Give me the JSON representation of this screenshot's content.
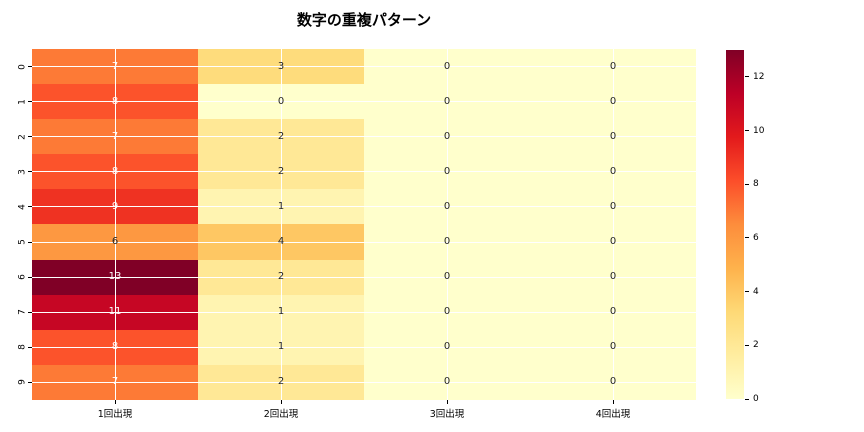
{
  "title": "数字の重複パターン",
  "chart_data": {
    "type": "heatmap",
    "title": "数字の重複パターン",
    "rows": [
      "0",
      "1",
      "2",
      "3",
      "4",
      "5",
      "6",
      "7",
      "8",
      "9"
    ],
    "columns": [
      "1回出現",
      "2回出現",
      "3回出現",
      "4回出現"
    ],
    "values": [
      [
        7,
        3,
        0,
        0
      ],
      [
        8,
        0,
        0,
        0
      ],
      [
        7,
        2,
        0,
        0
      ],
      [
        8,
        2,
        0,
        0
      ],
      [
        9,
        1,
        0,
        0
      ],
      [
        6,
        4,
        0,
        0
      ],
      [
        13,
        2,
        0,
        0
      ],
      [
        11,
        1,
        0,
        0
      ],
      [
        8,
        1,
        0,
        0
      ],
      [
        7,
        2,
        0,
        0
      ]
    ],
    "vmin": 0,
    "vmax": 13,
    "annotated": true,
    "grid": true,
    "colormap": {
      "name": "YlOrRd",
      "stops": [
        "#ffffcc",
        "#ffeda0",
        "#fed976",
        "#feb24c",
        "#fd8d3c",
        "#fc4e2a",
        "#e31a1c",
        "#bd0026",
        "#800026"
      ]
    },
    "annotation_text_colors": {
      "light_cell": "#262626",
      "dark_cell": "#ffffff"
    },
    "colorbar": {
      "position": "right",
      "ticks": [
        0,
        2,
        4,
        6,
        8,
        10,
        12
      ]
    }
  }
}
